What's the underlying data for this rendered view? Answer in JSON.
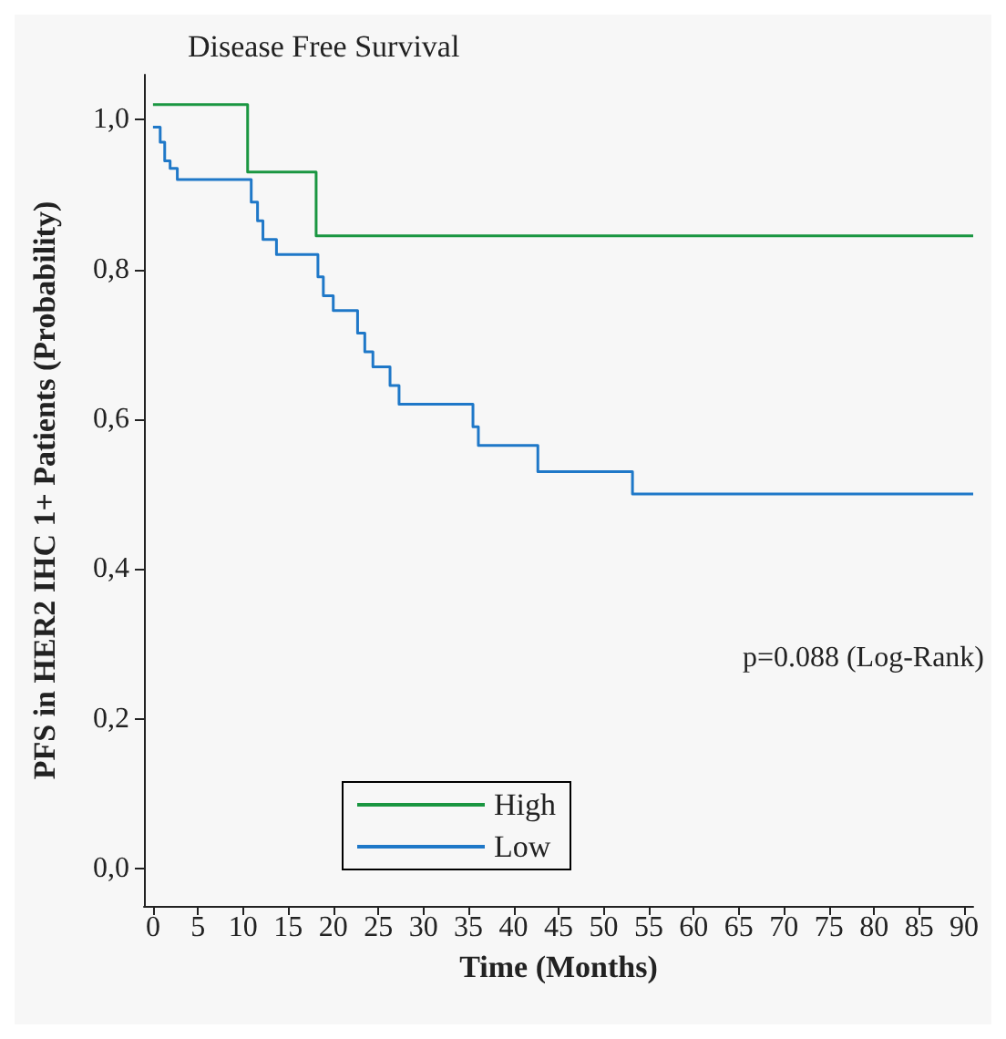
{
  "chart_data": {
    "type": "step",
    "title": "Disease Free Survival",
    "xlabel": "Time (Months)",
    "ylabel": "PFS in HER2 IHC 1+ Patients (Probability)",
    "xlim": [
      -1,
      91
    ],
    "xticks": [
      0,
      5,
      10,
      15,
      20,
      25,
      30,
      35,
      40,
      45,
      50,
      55,
      60,
      65,
      70,
      75,
      80,
      85,
      90
    ],
    "ylim": [
      -0.05,
      1.06
    ],
    "yticks": [
      {
        "value": 0,
        "label": "0,0"
      },
      {
        "value": 0.2,
        "label": "0,2"
      },
      {
        "value": 0.4,
        "label": "0,4"
      },
      {
        "value": 0.6,
        "label": "0,6"
      },
      {
        "value": 0.8,
        "label": "0,8"
      },
      {
        "value": 1,
        "label": "1,0"
      }
    ],
    "series": [
      {
        "name": "High",
        "color": "#1a9641",
        "x": [
          0,
          10.5,
          18.1,
          91
        ],
        "values": [
          1.02,
          0.93,
          0.845,
          0.845
        ]
      },
      {
        "name": "Low",
        "color": "#1f78c8",
        "x": [
          0,
          0.8,
          1.3,
          1.9,
          2.7,
          10.9,
          11.6,
          12.2,
          13.7,
          18.3,
          18.9,
          20,
          22.7,
          23.5,
          24.4,
          26.3,
          27.3,
          35.5,
          36.1,
          42.7,
          53.2,
          91
        ],
        "values": [
          0.99,
          0.97,
          0.945,
          0.935,
          0.92,
          0.89,
          0.865,
          0.84,
          0.82,
          0.79,
          0.765,
          0.745,
          0.715,
          0.69,
          0.67,
          0.645,
          0.62,
          0.59,
          0.565,
          0.53,
          0.5,
          0.5
        ]
      }
    ],
    "annotations": [
      "p=0.088 (Log-Rank)"
    ],
    "legend": "bottom",
    "grid": false,
    "marker": "none",
    "line_style": "solid"
  }
}
